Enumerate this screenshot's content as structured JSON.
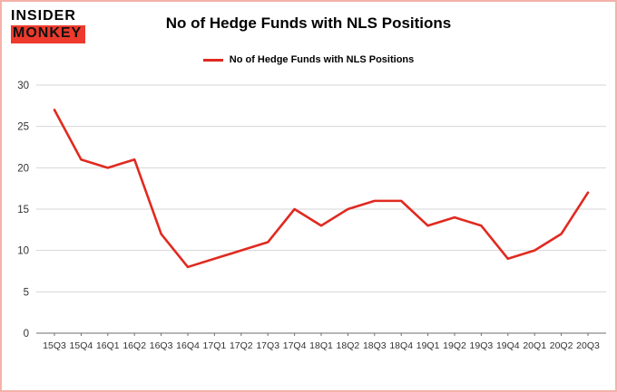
{
  "branding": {
    "line1": "INSIDER",
    "line2": "MONKEY"
  },
  "title": "No of Hedge Funds with NLS Positions",
  "legend": {
    "label": "No of Hedge Funds with NLS Positions",
    "color": "#e02a20"
  },
  "colors": {
    "line": "#e02a20",
    "grid": "#d6d6d6",
    "axis": "#6e6e6e",
    "tick_text": "#333333",
    "frame_border": "#f3b2aa"
  },
  "chart_data": {
    "type": "line",
    "title": "No of Hedge Funds with NLS Positions",
    "categories": [
      "15Q3",
      "15Q4",
      "16Q1",
      "16Q2",
      "16Q3",
      "16Q4",
      "17Q1",
      "17Q2",
      "17Q3",
      "17Q4",
      "18Q1",
      "18Q2",
      "18Q3",
      "18Q4",
      "19Q1",
      "19Q2",
      "19Q3",
      "19Q4",
      "20Q1",
      "20Q2",
      "20Q3"
    ],
    "values": [
      27,
      21,
      20,
      21,
      12,
      8,
      9,
      10,
      11,
      15,
      13,
      15,
      16,
      16,
      13,
      14,
      13,
      9,
      10,
      12,
      17
    ],
    "series": [
      {
        "name": "No of Hedge Funds with NLS Positions",
        "values": [
          27,
          21,
          20,
          21,
          12,
          8,
          9,
          10,
          11,
          15,
          13,
          15,
          16,
          16,
          13,
          14,
          13,
          9,
          10,
          12,
          17
        ]
      }
    ],
    "xlabel": "",
    "ylabel": "",
    "ylim": [
      0,
      30
    ],
    "yticks": [
      0,
      5,
      10,
      15,
      20,
      25,
      30
    ],
    "grid": true,
    "legend_position": "top-center"
  }
}
